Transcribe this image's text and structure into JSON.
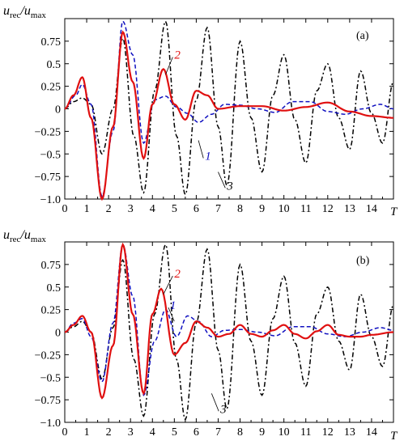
{
  "chart_data": [
    {
      "type": "line",
      "panel_label": "(a)",
      "ylabel_var": "u",
      "ylabel_sub1": "rec",
      "ylabel_sub2": "max",
      "xlabel": "T",
      "xlim": [
        0,
        15
      ],
      "ylim": [
        -1.0,
        1.0
      ],
      "x_ticks": [
        0,
        1,
        2,
        3,
        4,
        5,
        6,
        7,
        8,
        9,
        10,
        11,
        12,
        13,
        14
      ],
      "x_tick_labels": [
        "0",
        "1",
        "2",
        "3",
        "4",
        "5",
        "6",
        "7",
        "8",
        "9",
        "10",
        "11",
        "12",
        "13",
        "14"
      ],
      "y_ticks": [
        0.75,
        0.5,
        0.25,
        0,
        -0.25,
        -0.5,
        -0.75,
        -1.0
      ],
      "y_tick_labels": [
        "0.75",
        "0.5",
        "0.25",
        "0",
        "−0.25",
        "−0.5",
        "−0.75",
        "−1.0"
      ],
      "grid": false,
      "series": [
        {
          "name": "1",
          "color": "#1010c0",
          "style": "dashed",
          "x": [
            0,
            0.5,
            0.8,
            1.2,
            1.7,
            2.2,
            2.65,
            3.1,
            3.6,
            4.1,
            4.6,
            5.1,
            5.6,
            6.1,
            6.7,
            7.3,
            8.0,
            8.8,
            9.6,
            10.4,
            11.2,
            12.0,
            12.8,
            13.6,
            14.4,
            15.0
          ],
          "y": [
            0,
            0.15,
            0.27,
            0.05,
            -0.97,
            -0.25,
            0.97,
            0.6,
            -0.38,
            0.1,
            0.14,
            0.02,
            -0.05,
            -0.15,
            -0.06,
            0.05,
            0.04,
            0.0,
            -0.04,
            0.08,
            0.08,
            -0.03,
            -0.06,
            0.0,
            0.05,
            0.0
          ]
        },
        {
          "name": "2",
          "color": "#e01010",
          "style": "solid",
          "x": [
            0,
            0.4,
            0.8,
            1.2,
            1.7,
            2.2,
            2.65,
            3.1,
            3.6,
            4.0,
            4.5,
            5.0,
            5.5,
            6.0,
            6.5,
            7.0,
            8.0,
            9.0,
            10.0,
            11.0,
            12.0,
            13.0,
            14.0,
            15.0
          ],
          "y": [
            0,
            0.15,
            0.35,
            -0.1,
            -1.0,
            -0.2,
            0.85,
            0.3,
            -0.55,
            0.05,
            0.44,
            0.05,
            -0.12,
            0.2,
            0.15,
            0.0,
            0.03,
            0.03,
            -0.02,
            0.02,
            0.07,
            -0.03,
            -0.08,
            -0.1
          ]
        },
        {
          "name": "3",
          "color": "#000000",
          "style": "dash-dot",
          "x": [
            0,
            0.4,
            0.8,
            1.2,
            1.7,
            2.2,
            2.65,
            3.15,
            3.6,
            4.1,
            4.6,
            5.1,
            5.5,
            6.0,
            6.5,
            7.0,
            7.4,
            8.0,
            8.5,
            9.0,
            9.5,
            10.0,
            10.5,
            11.0,
            11.5,
            12.0,
            12.5,
            13.0,
            13.5,
            14.0,
            14.5,
            15.0
          ],
          "y": [
            0,
            0.08,
            0.12,
            0.05,
            -0.5,
            0.0,
            0.78,
            -0.3,
            -0.93,
            0.2,
            0.97,
            -0.3,
            -0.95,
            0.1,
            0.9,
            -0.2,
            -0.85,
            0.75,
            -0.1,
            -0.7,
            0.15,
            0.6,
            -0.12,
            -0.6,
            0.2,
            0.5,
            -0.1,
            -0.45,
            0.42,
            -0.05,
            -0.38,
            0.3
          ]
        }
      ],
      "annotations": [
        "1",
        "2",
        "3"
      ]
    },
    {
      "type": "line",
      "panel_label": "(b)",
      "ylabel_var": "u",
      "ylabel_sub1": "rec",
      "ylabel_sub2": "max",
      "xlabel": "T",
      "xlim": [
        0,
        15
      ],
      "ylim": [
        -1.0,
        1.0
      ],
      "x_ticks": [
        0,
        1,
        2,
        3,
        4,
        5,
        6,
        7,
        8,
        9,
        10,
        11,
        12,
        13,
        14
      ],
      "x_tick_labels": [
        "0",
        "1",
        "2",
        "3",
        "4",
        "5",
        "6",
        "7",
        "8",
        "9",
        "10",
        "11",
        "12",
        "13",
        "14"
      ],
      "y_ticks": [
        0.75,
        0.5,
        0.25,
        0,
        -0.25,
        -0.5,
        -0.75,
        -1.0
      ],
      "y_tick_labels": [
        "0.75",
        "0.5",
        "0.25",
        "0",
        "−0.25",
        "−0.5",
        "−0.75",
        "−1.0"
      ],
      "grid": false,
      "series": [
        {
          "name": "1",
          "color": "#1010c0",
          "style": "dashed",
          "x": [
            0,
            0.4,
            0.8,
            1.2,
            1.7,
            2.2,
            2.65,
            3.1,
            3.6,
            4.1,
            4.6,
            5.1,
            5.6,
            6.1,
            6.7,
            7.3,
            8.0,
            8.8,
            9.6,
            10.4,
            11.2,
            12.0,
            12.8,
            13.6,
            14.4,
            15.0
          ],
          "y": [
            0,
            0.1,
            0.15,
            -0.05,
            -0.55,
            0.1,
            0.97,
            0.4,
            -0.7,
            -0.1,
            0.25,
            -0.05,
            0.18,
            0.12,
            -0.05,
            0.02,
            0.03,
            0.0,
            -0.04,
            0.06,
            0.06,
            -0.02,
            -0.05,
            0.0,
            0.05,
            0.02
          ]
        },
        {
          "name": "2",
          "color": "#e01010",
          "style": "solid",
          "x": [
            0,
            0.4,
            0.8,
            1.2,
            1.7,
            2.2,
            2.65,
            3.1,
            3.6,
            4.0,
            4.4,
            5.0,
            5.5,
            6.0,
            6.5,
            7.0,
            7.5,
            8.0,
            8.5,
            9.0,
            9.5,
            10.0,
            10.5,
            11.0,
            11.5,
            12.0,
            12.5,
            13.0,
            13.5,
            14.0,
            15.0
          ],
          "y": [
            0,
            0.08,
            0.18,
            0.0,
            -0.73,
            -0.15,
            0.97,
            0.2,
            -0.68,
            0.2,
            0.48,
            -0.25,
            -0.12,
            0.12,
            0.05,
            -0.05,
            -0.02,
            0.08,
            -0.02,
            -0.05,
            0.02,
            0.08,
            -0.02,
            -0.07,
            0.01,
            0.08,
            -0.03,
            -0.05,
            -0.05,
            -0.03,
            0.0
          ]
        },
        {
          "name": "3",
          "color": "#000000",
          "style": "dash-dot",
          "x": [
            0,
            0.4,
            0.8,
            1.2,
            1.7,
            2.2,
            2.65,
            3.15,
            3.6,
            4.1,
            4.6,
            5.1,
            5.5,
            6.0,
            6.5,
            7.0,
            7.4,
            8.0,
            8.5,
            9.0,
            9.5,
            10.0,
            10.5,
            11.0,
            11.5,
            12.0,
            12.5,
            13.0,
            13.5,
            14.0,
            14.5,
            15.0
          ],
          "y": [
            0,
            0.06,
            0.12,
            0.0,
            -0.52,
            0.05,
            0.8,
            -0.3,
            -0.93,
            0.2,
            0.97,
            -0.3,
            -0.97,
            0.1,
            0.92,
            -0.2,
            -0.85,
            0.75,
            -0.1,
            -0.7,
            0.15,
            0.62,
            -0.12,
            -0.6,
            0.2,
            0.5,
            -0.1,
            -0.42,
            0.42,
            -0.05,
            -0.38,
            0.3
          ]
        }
      ],
      "annotations": [
        "1",
        "2",
        "3"
      ]
    }
  ]
}
